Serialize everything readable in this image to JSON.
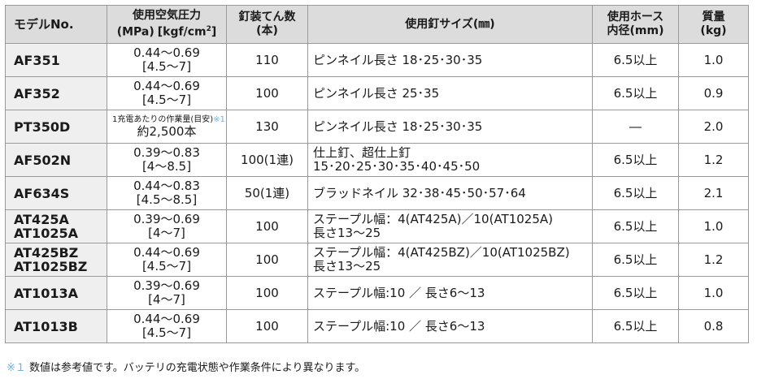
{
  "headers": {
    "model": "モデルNo.",
    "pressure_line1": "使用空気圧力",
    "pressure_line2a": "(MPa)",
    "pressure_line2b": "[kgf/cm",
    "pressure_sup": "2",
    "pressure_line2c": "]",
    "capacity_line1": "釘装てん数",
    "capacity_line2": "(本)",
    "nail_size": "使用釘サイズ(㎜)",
    "hose_line1": "使用ホース",
    "hose_line2": "内径(mm)",
    "mass_line1": "質量",
    "mass_line2": "(kg)"
  },
  "rows": [
    {
      "model": [
        "AF351"
      ],
      "pressure": [
        "0.44～0.69",
        "[4.5～7]"
      ],
      "capacity": "110",
      "nail": [
        "ピンネイル長さ 18･25･30･35"
      ],
      "hose": "6.5以上",
      "mass": "1.0"
    },
    {
      "model": [
        "AF352"
      ],
      "pressure": [
        "0.44～0.69",
        "[4.5～7]"
      ],
      "capacity": "100",
      "nail": [
        "ピンネイル長さ 25･35"
      ],
      "hose": "6.5以上",
      "mass": "0.9"
    },
    {
      "model": [
        "PT350D"
      ],
      "pressure_note": "1充電あたりの作業量(目安)",
      "pressure_note_mark": "※1",
      "pressure": [
        "約2,500本"
      ],
      "capacity": "130",
      "nail": [
        "ピンネイル長さ 18･25･30･35"
      ],
      "hose": "―",
      "mass": "2.0"
    },
    {
      "model": [
        "AF502N"
      ],
      "pressure": [
        "0.39～0.83",
        "[4～8.5]"
      ],
      "capacity": "100(1連)",
      "nail": [
        "仕上釘、超仕上釘",
        "15･20･25･30･35･40･45･50"
      ],
      "hose": "6.5以上",
      "mass": "1.2"
    },
    {
      "model": [
        "AF634S"
      ],
      "pressure": [
        "0.44～0.83",
        "[4.5～8.5]"
      ],
      "capacity": "50(1連)",
      "nail": [
        "ブラッドネイル 32･38･45･50･57･64"
      ],
      "hose": "6.5以上",
      "mass": "2.1"
    },
    {
      "model": [
        "AT425A",
        "AT1025A"
      ],
      "pressure": [
        "0.39～0.69",
        "[4～7]"
      ],
      "capacity": "100",
      "nail": [
        "ステープル幅：4(AT425A)／10(AT1025A)",
        "長さ13～25"
      ],
      "hose": "6.5以上",
      "mass": "1.0"
    },
    {
      "model": [
        "AT425BZ",
        "AT1025BZ"
      ],
      "pressure": [
        "0.44～0.69",
        "[4.5～7]"
      ],
      "capacity": "100",
      "nail": [
        "ステープル幅：4(AT425BZ)／10(AT1025BZ)",
        "長さ13～25"
      ],
      "hose": "6.5以上",
      "mass": "1.2"
    },
    {
      "model": [
        "AT1013A"
      ],
      "pressure": [
        "0.39～0.69",
        "[4～7]"
      ],
      "capacity": "100",
      "nail": [
        "ステープル幅:10 ／ 長さ6～13"
      ],
      "hose": "6.5以上",
      "mass": "1.0"
    },
    {
      "model": [
        "AT1013B"
      ],
      "pressure": [
        "0.44～0.69",
        "[4.5～7]"
      ],
      "capacity": "100",
      "nail": [
        "ステープル幅:10 ／ 長さ6～13"
      ],
      "hose": "6.5以上",
      "mass": "0.8"
    }
  ],
  "footnote": {
    "mark": "※１",
    "text": " 数値は参考値です。バッテリの充電状態や作業条件により異なります。"
  },
  "colors": {
    "header_bg": "#dcdcdc",
    "model_bg": "#efefef",
    "border": "#9a9a9a",
    "note_accent": "#6db3d8"
  }
}
